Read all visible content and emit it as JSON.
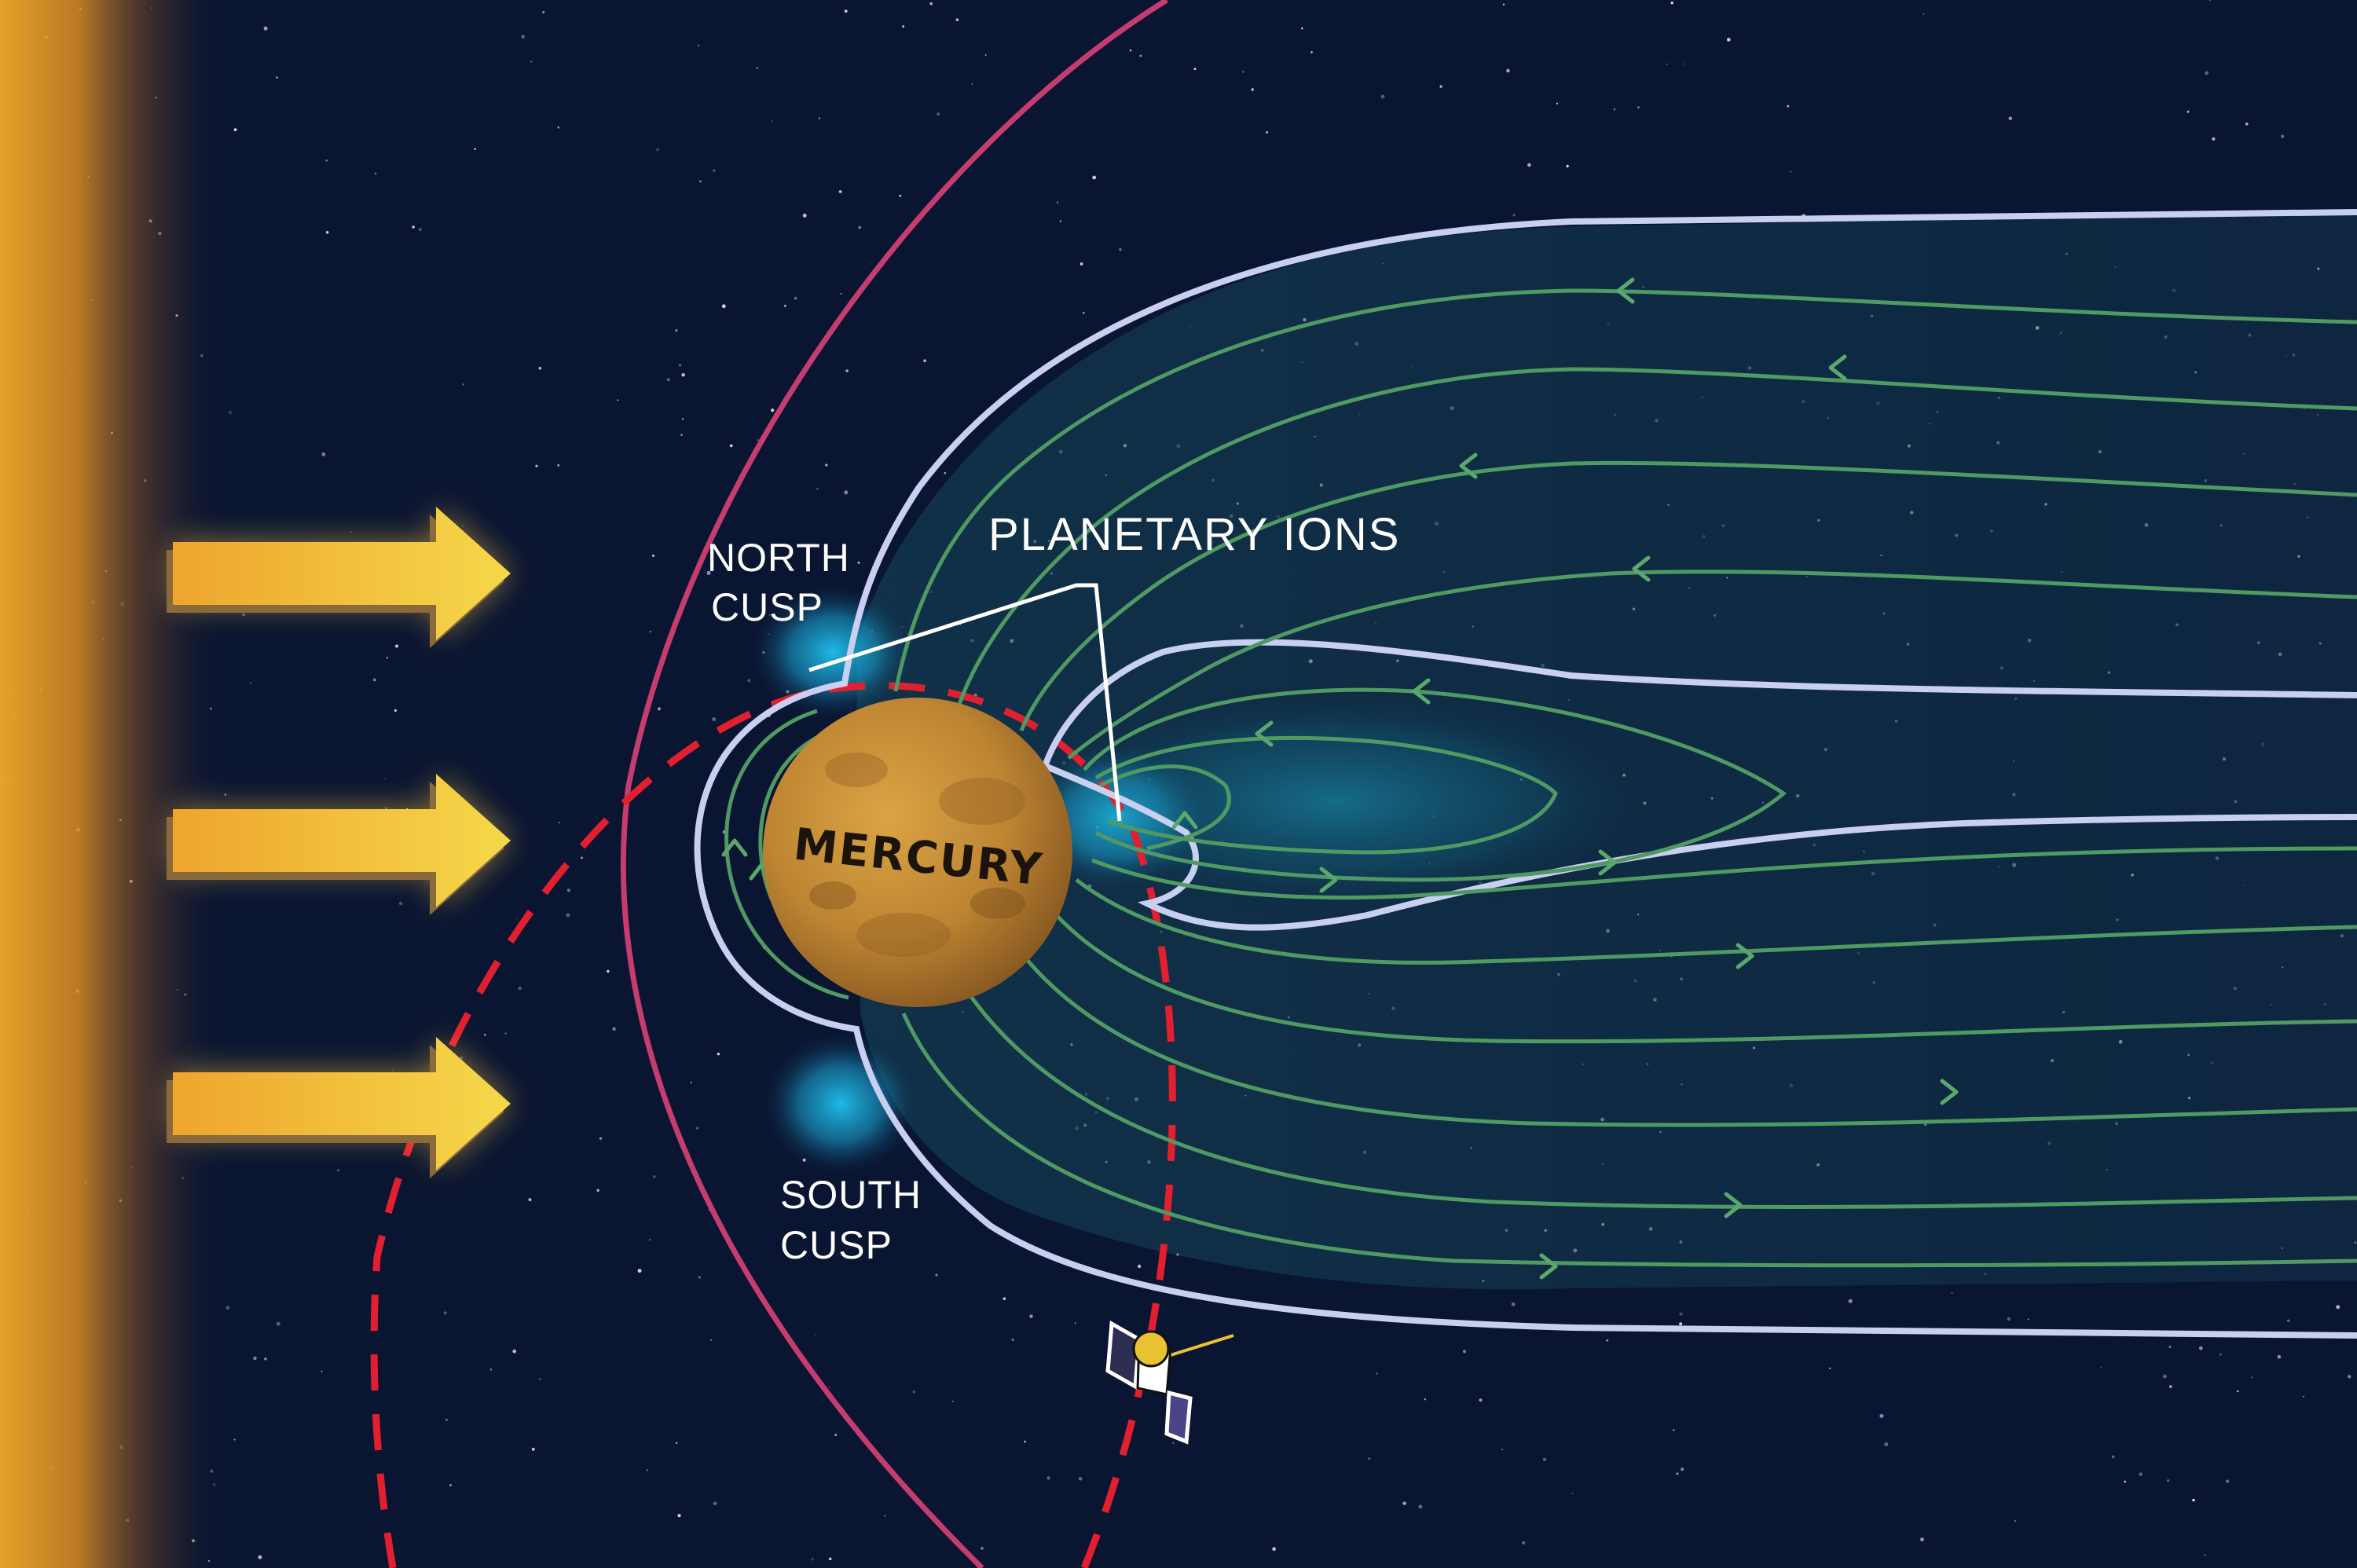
{
  "labels": {
    "planet": "MERCURY",
    "planetary_ions": "PLANETARY IONS",
    "north_cusp_line1": "NORTH",
    "north_cusp_line2": "CUSP",
    "south_cusp_line1": "SOUTH",
    "south_cusp_line2": "CUSP"
  },
  "colors": {
    "background": "#0a1531",
    "sun_glow": "#f2a21c",
    "solar_wind_arrow": "#f4c23a",
    "bow_shock": "#c43d6e",
    "magnetopause": "#c9cff0",
    "field_lines": "#4f9a63",
    "spacecraft_orbit": "#e21f2e",
    "cusp_glow": "#1fc3f0",
    "planet": "#c58a2e"
  },
  "icons": {
    "solar_wind_arrows": "arrow-right-icon",
    "spacecraft": "spacecraft-icon"
  },
  "solar_wind_arrow_count": 3
}
